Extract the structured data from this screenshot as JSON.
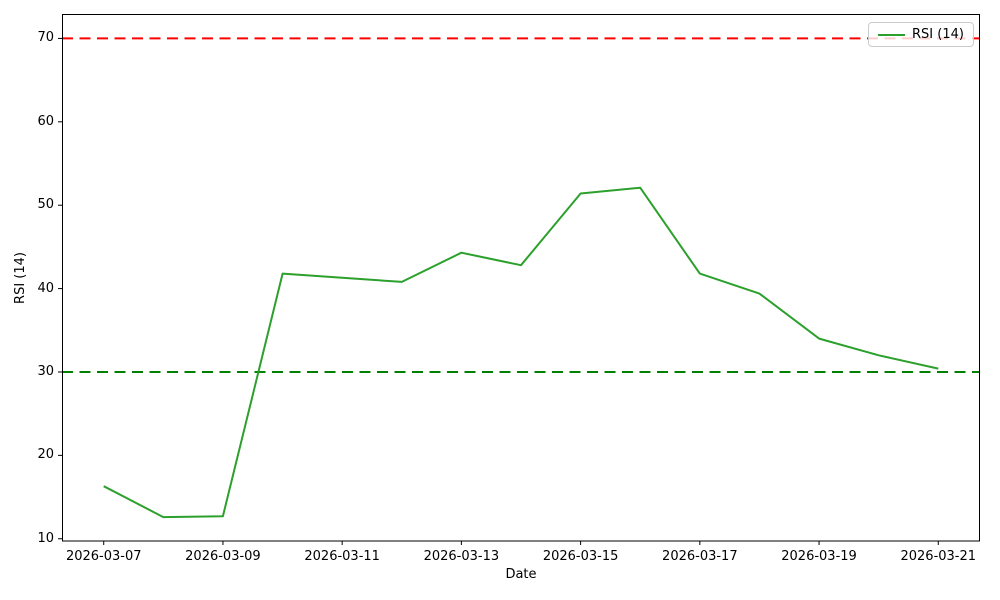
{
  "chart_data": {
    "type": "line",
    "title": "",
    "xlabel": "Date",
    "ylabel": "RSI (14)",
    "x": [
      "2026-03-07",
      "2026-03-08",
      "2026-03-09",
      "2026-03-10",
      "2026-03-11",
      "2026-03-12",
      "2026-03-13",
      "2026-03-14",
      "2026-03-15",
      "2026-03-16",
      "2026-03-17",
      "2026-03-18",
      "2026-03-19",
      "2026-03-20",
      "2026-03-21"
    ],
    "series": [
      {
        "name": "RSI (14)",
        "color": "#2ca02c",
        "line_width": 2,
        "values": [
          16.3,
          12.6,
          12.7,
          41.8,
          41.3,
          40.8,
          44.3,
          42.8,
          51.4,
          52.1,
          41.8,
          39.4,
          34.0,
          32.0,
          30.4
        ]
      }
    ],
    "reference_lines": [
      {
        "name": "overbought-threshold",
        "value": 70,
        "color": "#ff0000",
        "style": "dashed"
      },
      {
        "name": "oversold-threshold",
        "value": 30,
        "color": "#008000",
        "style": "dashed"
      }
    ],
    "xtick_indices": [
      0,
      2,
      4,
      6,
      8,
      10,
      12,
      14
    ],
    "xtick_labels": [
      "2026-03-07",
      "2026-03-09",
      "2026-03-11",
      "2026-03-13",
      "2026-03-15",
      "2026-03-17",
      "2026-03-19",
      "2026-03-21"
    ],
    "yticks": [
      10,
      20,
      30,
      40,
      50,
      60,
      70
    ],
    "xlim": [
      -0.7,
      14.7
    ],
    "ylim": [
      9.73,
      72.87
    ],
    "grid": false,
    "legend": {
      "label": "RSI (14)",
      "position": "upper right",
      "sample_color": "#2ca02c"
    },
    "axis_color": "#000000"
  }
}
